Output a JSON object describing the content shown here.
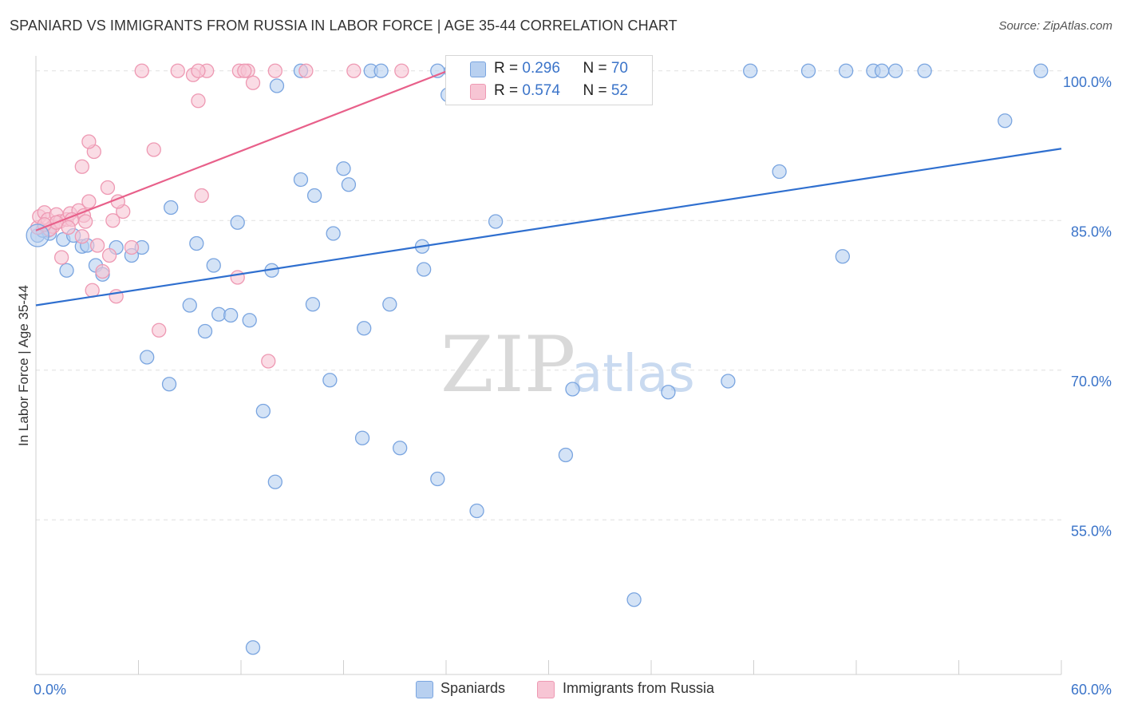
{
  "title": "SPANIARD VS IMMIGRANTS FROM RUSSIA IN LABOR FORCE | AGE 35-44 CORRELATION CHART",
  "source": "Source: ZipAtlas.com",
  "watermark": {
    "zip": "ZIP",
    "atlas": "atlas"
  },
  "legend": {
    "rows": [
      {
        "r_label": "R = ",
        "r_value": "0.296",
        "n_label": "N = ",
        "n_value": "70"
      },
      {
        "r_label": "R = ",
        "r_value": "0.574",
        "n_label": "N = ",
        "n_value": "52"
      }
    ]
  },
  "bottom_legend": {
    "series1": "Spaniards",
    "series2": "Immigrants from Russia"
  },
  "colors": {
    "blue_fill": "#b8d0f0",
    "blue_stroke": "#7aa5e0",
    "blue_line": "#2f6fcf",
    "pink_fill": "#f7c5d4",
    "pink_stroke": "#ee99b3",
    "pink_line": "#e8608a",
    "grid": "#e0e0e0",
    "axis_text": "#3b74c9"
  },
  "chart_data": {
    "type": "scatter",
    "title": "SPANIARD VS IMMIGRANTS FROM RUSSIA IN LABOR FORCE | AGE 35-44 CORRELATION CHART",
    "xlabel": "",
    "ylabel": "In Labor Force | Age 35-44",
    "xlim": [
      0,
      60
    ],
    "ylim": [
      39.5,
      101.5
    ],
    "x_tick_labels": [
      {
        "value": 0,
        "label": "0.0%"
      },
      {
        "value": 60,
        "label": "60.0%"
      }
    ],
    "y_tick_labels": [
      {
        "value": 100,
        "label": "100.0%"
      },
      {
        "value": 85,
        "label": "85.0%"
      },
      {
        "value": 70,
        "label": "70.0%"
      },
      {
        "value": 55,
        "label": "55.0%"
      }
    ],
    "y_gridlines": [
      100,
      85,
      70,
      55
    ],
    "series": [
      {
        "name": "Spaniards",
        "color": "blue",
        "trend": {
          "x": [
            0,
            60
          ],
          "y": [
            76.5,
            92.2
          ]
        },
        "points": [
          [
            0.1,
            83.5
          ],
          [
            0.7,
            84.0
          ],
          [
            0.8,
            83.7
          ],
          [
            1.6,
            83.1
          ],
          [
            2.2,
            83.5
          ],
          [
            1.8,
            80.0
          ],
          [
            2.7,
            82.4
          ],
          [
            3.0,
            82.5
          ],
          [
            3.5,
            80.5
          ],
          [
            4.7,
            82.3
          ],
          [
            5.6,
            81.5
          ],
          [
            7.9,
            86.3
          ],
          [
            9.4,
            82.7
          ],
          [
            10.4,
            80.5
          ],
          [
            11.8,
            84.8
          ],
          [
            13.8,
            80.0
          ],
          [
            15.5,
            89.1
          ],
          [
            16.3,
            87.5
          ],
          [
            17.4,
            83.7
          ],
          [
            18.0,
            90.2
          ],
          [
            18.3,
            88.6
          ],
          [
            19.2,
            74.2
          ],
          [
            20.7,
            76.6
          ],
          [
            22.6,
            82.4
          ],
          [
            22.7,
            80.1
          ],
          [
            26.9,
            84.9
          ],
          [
            6.5,
            71.3
          ],
          [
            7.8,
            68.6
          ],
          [
            9.0,
            76.5
          ],
          [
            9.9,
            73.9
          ],
          [
            10.7,
            75.6
          ],
          [
            11.4,
            75.5
          ],
          [
            12.5,
            75.0
          ],
          [
            17.2,
            69.0
          ],
          [
            16.2,
            76.6
          ],
          [
            13.3,
            65.9
          ],
          [
            19.1,
            63.2
          ],
          [
            21.3,
            62.2
          ],
          [
            14.0,
            58.8
          ],
          [
            23.5,
            59.1
          ],
          [
            25.8,
            55.9
          ],
          [
            31.0,
            61.5
          ],
          [
            31.4,
            68.1
          ],
          [
            37.0,
            67.8
          ],
          [
            40.5,
            68.9
          ],
          [
            35.0,
            47.0
          ],
          [
            12.7,
            42.2
          ],
          [
            43.5,
            89.9
          ],
          [
            47.2,
            81.4
          ],
          [
            56.7,
            95.0
          ],
          [
            14.1,
            98.5
          ],
          [
            15.5,
            100
          ],
          [
            19.6,
            100
          ],
          [
            20.2,
            100
          ],
          [
            23.5,
            100
          ],
          [
            24.3,
            100
          ],
          [
            24.1,
            97.6
          ],
          [
            30.3,
            100
          ],
          [
            31.0,
            100
          ],
          [
            41.8,
            100
          ],
          [
            45.2,
            100
          ],
          [
            47.4,
            100
          ],
          [
            49.0,
            100
          ],
          [
            49.5,
            100
          ],
          [
            50.3,
            100
          ],
          [
            52.0,
            100
          ],
          [
            58.8,
            100
          ],
          [
            0.4,
            84.0
          ],
          [
            3.9,
            79.6
          ],
          [
            6.2,
            82.3
          ]
        ]
      },
      {
        "name": "Immigrants from Russia",
        "color": "pink",
        "trend": {
          "x": [
            0,
            24.1
          ],
          "y": [
            84.0,
            100
          ]
        },
        "points": [
          [
            0.1,
            84.3
          ],
          [
            0.2,
            85.4
          ],
          [
            0.5,
            85.8
          ],
          [
            0.7,
            85.1
          ],
          [
            1.0,
            84.4
          ],
          [
            1.2,
            85.6
          ],
          [
            1.4,
            84.9
          ],
          [
            1.8,
            85.1
          ],
          [
            2.0,
            85.7
          ],
          [
            2.5,
            86.0
          ],
          [
            2.8,
            85.5
          ],
          [
            2.9,
            84.9
          ],
          [
            3.1,
            86.9
          ],
          [
            0.8,
            84.1
          ],
          [
            1.5,
            81.3
          ],
          [
            2.7,
            83.4
          ],
          [
            3.6,
            82.5
          ],
          [
            3.9,
            79.9
          ],
          [
            4.3,
            81.5
          ],
          [
            4.5,
            85.0
          ],
          [
            5.1,
            85.9
          ],
          [
            5.6,
            82.3
          ],
          [
            4.2,
            88.3
          ],
          [
            4.8,
            86.9
          ],
          [
            3.3,
            78.0
          ],
          [
            4.7,
            77.4
          ],
          [
            2.7,
            90.4
          ],
          [
            3.4,
            91.9
          ],
          [
            3.1,
            92.9
          ],
          [
            6.9,
            92.1
          ],
          [
            9.7,
            87.5
          ],
          [
            11.8,
            79.3
          ],
          [
            7.2,
            74.0
          ],
          [
            13.6,
            70.9
          ],
          [
            9.5,
            97.0
          ],
          [
            8.3,
            100
          ],
          [
            9.2,
            99.6
          ],
          [
            10.0,
            100
          ],
          [
            6.2,
            100
          ],
          [
            11.9,
            100
          ],
          [
            12.4,
            100
          ],
          [
            12.7,
            98.8
          ],
          [
            14.0,
            100
          ],
          [
            15.8,
            100
          ],
          [
            18.6,
            100
          ],
          [
            21.4,
            100
          ],
          [
            12.2,
            100
          ],
          [
            9.5,
            100
          ],
          [
            2.1,
            85.1
          ],
          [
            1.2,
            84.8
          ],
          [
            0.5,
            84.6
          ],
          [
            1.9,
            84.3
          ]
        ]
      }
    ]
  }
}
